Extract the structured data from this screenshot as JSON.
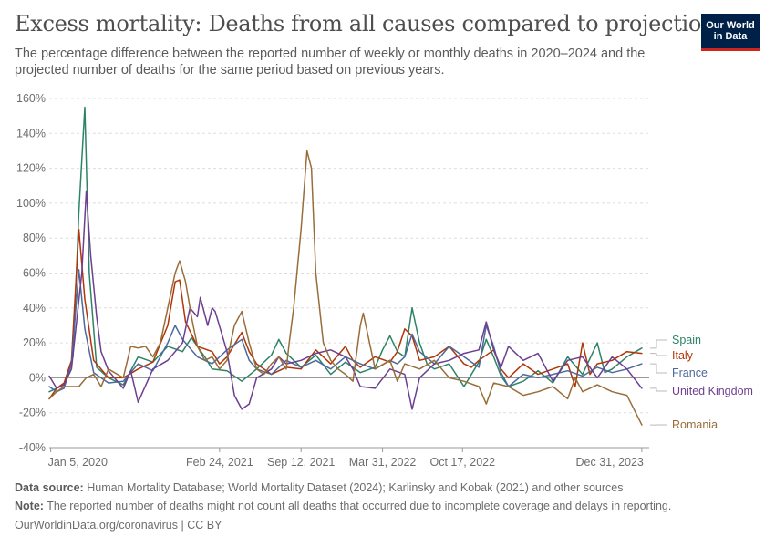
{
  "header": {
    "title": "Excess mortality: Deaths from all causes compared to projection",
    "subtitle": "The percentage difference between the reported number of weekly or monthly deaths in 2020–2024 and the projected number of deaths for the same period based on previous years.",
    "logo_line1": "Our World",
    "logo_line2": "in Data"
  },
  "footer": {
    "source_label": "Data source:",
    "source_text": "Human Mortality Database; World Mortality Dataset (2024); Karlinsky and Kobak (2021) and other sources",
    "note_label": "Note:",
    "note_text": "The reported number of deaths might not count all deaths that occurred due to incomplete coverage and delays in reporting.",
    "credit": "OurWorldinData.org/coronavirus | CC BY"
  },
  "colors": {
    "Spain": "#2c8465",
    "Italy": "#b13507",
    "France": "#4c6a9c",
    "United Kingdom": "#6d3e91",
    "Romania": "#996d39"
  },
  "chart_data": {
    "type": "line",
    "title": "Excess mortality: Deaths from all causes compared to projection",
    "xlabel": "",
    "ylabel": "",
    "ylim": [
      -40,
      160
    ],
    "yticks": [
      -40,
      -20,
      0,
      20,
      40,
      60,
      80,
      100,
      120,
      140,
      160
    ],
    "ytick_labels": [
      "-40%",
      "-20%",
      "0%",
      "20%",
      "40%",
      "60%",
      "80%",
      "100%",
      "120%",
      "140%",
      "160%"
    ],
    "xlim": [
      2020.0,
      2024.05
    ],
    "xticks": [
      {
        "x": 2020.01,
        "label": "Jan 5, 2020"
      },
      {
        "x": 2021.15,
        "label": "Feb 24, 2021"
      },
      {
        "x": 2021.7,
        "label": "Sep 12, 2021"
      },
      {
        "x": 2022.25,
        "label": "Mar 31, 2022"
      },
      {
        "x": 2022.79,
        "label": "Oct 17, 2022"
      },
      {
        "x": 2024.0,
        "label": "Dec 31, 2023"
      }
    ],
    "series": [
      {
        "name": "Spain",
        "points": [
          [
            2020.0,
            -8
          ],
          [
            2020.1,
            -4
          ],
          [
            2020.16,
            12
          ],
          [
            2020.2,
            95
          ],
          [
            2020.24,
            155
          ],
          [
            2020.27,
            60
          ],
          [
            2020.32,
            6
          ],
          [
            2020.4,
            0
          ],
          [
            2020.5,
            -4
          ],
          [
            2020.6,
            12
          ],
          [
            2020.7,
            9
          ],
          [
            2020.8,
            18
          ],
          [
            2020.9,
            15
          ],
          [
            2020.96,
            23
          ],
          [
            2021.0,
            18
          ],
          [
            2021.05,
            12
          ],
          [
            2021.1,
            5
          ],
          [
            2021.2,
            4
          ],
          [
            2021.3,
            -2
          ],
          [
            2021.4,
            5
          ],
          [
            2021.5,
            13
          ],
          [
            2021.55,
            22
          ],
          [
            2021.6,
            14
          ],
          [
            2021.7,
            6
          ],
          [
            2021.8,
            13
          ],
          [
            2021.9,
            2
          ],
          [
            2022.0,
            9
          ],
          [
            2022.1,
            3
          ],
          [
            2022.2,
            6
          ],
          [
            2022.25,
            16
          ],
          [
            2022.3,
            24
          ],
          [
            2022.35,
            15
          ],
          [
            2022.4,
            12
          ],
          [
            2022.45,
            40
          ],
          [
            2022.5,
            20
          ],
          [
            2022.55,
            8
          ],
          [
            2022.6,
            5
          ],
          [
            2022.7,
            8
          ],
          [
            2022.8,
            -5
          ],
          [
            2022.9,
            9
          ],
          [
            2022.95,
            22
          ],
          [
            2023.0,
            12
          ],
          [
            2023.05,
            1
          ],
          [
            2023.1,
            -5
          ],
          [
            2023.2,
            -2
          ],
          [
            2023.3,
            4
          ],
          [
            2023.4,
            -3
          ],
          [
            2023.5,
            12
          ],
          [
            2023.6,
            2
          ],
          [
            2023.7,
            20
          ],
          [
            2023.75,
            3
          ],
          [
            2023.8,
            5
          ],
          [
            2023.9,
            12
          ],
          [
            2024.0,
            17
          ]
        ]
      },
      {
        "name": "Italy",
        "points": [
          [
            2020.0,
            -12
          ],
          [
            2020.05,
            -6
          ],
          [
            2020.1,
            -3
          ],
          [
            2020.15,
            10
          ],
          [
            2020.2,
            85
          ],
          [
            2020.24,
            45
          ],
          [
            2020.3,
            10
          ],
          [
            2020.4,
            0
          ],
          [
            2020.5,
            0
          ],
          [
            2020.6,
            5
          ],
          [
            2020.7,
            9
          ],
          [
            2020.8,
            30
          ],
          [
            2020.85,
            55
          ],
          [
            2020.88,
            56
          ],
          [
            2020.92,
            32
          ],
          [
            2021.0,
            18
          ],
          [
            2021.1,
            15
          ],
          [
            2021.15,
            8
          ],
          [
            2021.2,
            12
          ],
          [
            2021.3,
            26
          ],
          [
            2021.35,
            15
          ],
          [
            2021.4,
            8
          ],
          [
            2021.5,
            2
          ],
          [
            2021.6,
            6
          ],
          [
            2021.7,
            5
          ],
          [
            2021.8,
            16
          ],
          [
            2021.9,
            8
          ],
          [
            2022.0,
            18
          ],
          [
            2022.05,
            10
          ],
          [
            2022.1,
            6
          ],
          [
            2022.2,
            12
          ],
          [
            2022.3,
            9
          ],
          [
            2022.35,
            15
          ],
          [
            2022.4,
            28
          ],
          [
            2022.45,
            24
          ],
          [
            2022.5,
            10
          ],
          [
            2022.6,
            12
          ],
          [
            2022.7,
            18
          ],
          [
            2022.8,
            8
          ],
          [
            2022.85,
            6
          ],
          [
            2022.9,
            10
          ],
          [
            2023.0,
            16
          ],
          [
            2023.05,
            5
          ],
          [
            2023.1,
            0
          ],
          [
            2023.2,
            8
          ],
          [
            2023.3,
            2
          ],
          [
            2023.4,
            5
          ],
          [
            2023.5,
            8
          ],
          [
            2023.55,
            -5
          ],
          [
            2023.6,
            20
          ],
          [
            2023.65,
            2
          ],
          [
            2023.7,
            8
          ],
          [
            2023.8,
            10
          ],
          [
            2023.9,
            15
          ],
          [
            2024.0,
            14
          ]
        ]
      },
      {
        "name": "France",
        "points": [
          [
            2020.0,
            -5
          ],
          [
            2020.05,
            -8
          ],
          [
            2020.1,
            -6
          ],
          [
            2020.15,
            8
          ],
          [
            2020.2,
            62
          ],
          [
            2020.24,
            28
          ],
          [
            2020.3,
            3
          ],
          [
            2020.4,
            -3
          ],
          [
            2020.5,
            -2
          ],
          [
            2020.6,
            8
          ],
          [
            2020.7,
            4
          ],
          [
            2020.8,
            20
          ],
          [
            2020.85,
            30
          ],
          [
            2020.9,
            22
          ],
          [
            2021.0,
            12
          ],
          [
            2021.1,
            8
          ],
          [
            2021.2,
            16
          ],
          [
            2021.3,
            22
          ],
          [
            2021.35,
            10
          ],
          [
            2021.4,
            5
          ],
          [
            2021.5,
            2
          ],
          [
            2021.6,
            10
          ],
          [
            2021.7,
            6
          ],
          [
            2021.8,
            10
          ],
          [
            2021.9,
            5
          ],
          [
            2022.0,
            12
          ],
          [
            2022.1,
            8
          ],
          [
            2022.2,
            5
          ],
          [
            2022.3,
            10
          ],
          [
            2022.35,
            8
          ],
          [
            2022.4,
            12
          ],
          [
            2022.45,
            25
          ],
          [
            2022.5,
            15
          ],
          [
            2022.6,
            8
          ],
          [
            2022.7,
            18
          ],
          [
            2022.8,
            12
          ],
          [
            2022.9,
            6
          ],
          [
            2022.95,
            30
          ],
          [
            2023.0,
            18
          ],
          [
            2023.05,
            3
          ],
          [
            2023.1,
            -5
          ],
          [
            2023.2,
            2
          ],
          [
            2023.3,
            0
          ],
          [
            2023.4,
            2
          ],
          [
            2023.5,
            4
          ],
          [
            2023.6,
            1
          ],
          [
            2023.7,
            6
          ],
          [
            2023.8,
            3
          ],
          [
            2023.9,
            5
          ],
          [
            2024.0,
            8
          ]
        ]
      },
      {
        "name": "United Kingdom",
        "points": [
          [
            2020.0,
            1
          ],
          [
            2020.05,
            -6
          ],
          [
            2020.1,
            -4
          ],
          [
            2020.15,
            5
          ],
          [
            2020.22,
            60
          ],
          [
            2020.25,
            107
          ],
          [
            2020.28,
            70
          ],
          [
            2020.32,
            35
          ],
          [
            2020.35,
            15
          ],
          [
            2020.4,
            4
          ],
          [
            2020.5,
            -6
          ],
          [
            2020.55,
            4
          ],
          [
            2020.6,
            -14
          ],
          [
            2020.7,
            5
          ],
          [
            2020.8,
            10
          ],
          [
            2020.9,
            20
          ],
          [
            2020.95,
            40
          ],
          [
            2021.0,
            35
          ],
          [
            2021.02,
            46
          ],
          [
            2021.07,
            30
          ],
          [
            2021.1,
            40
          ],
          [
            2021.12,
            38
          ],
          [
            2021.2,
            15
          ],
          [
            2021.25,
            -10
          ],
          [
            2021.3,
            -18
          ],
          [
            2021.35,
            -15
          ],
          [
            2021.4,
            0
          ],
          [
            2021.5,
            5
          ],
          [
            2021.55,
            12
          ],
          [
            2021.6,
            8
          ],
          [
            2021.7,
            10
          ],
          [
            2021.8,
            14
          ],
          [
            2021.9,
            16
          ],
          [
            2022.0,
            12
          ],
          [
            2022.05,
            5
          ],
          [
            2022.1,
            -5
          ],
          [
            2022.2,
            -6
          ],
          [
            2022.3,
            5
          ],
          [
            2022.4,
            2
          ],
          [
            2022.45,
            -18
          ],
          [
            2022.5,
            0
          ],
          [
            2022.6,
            8
          ],
          [
            2022.7,
            10
          ],
          [
            2022.8,
            14
          ],
          [
            2022.9,
            16
          ],
          [
            2022.95,
            32
          ],
          [
            2023.0,
            16
          ],
          [
            2023.05,
            6
          ],
          [
            2023.1,
            18
          ],
          [
            2023.2,
            10
          ],
          [
            2023.3,
            14
          ],
          [
            2023.4,
            -2
          ],
          [
            2023.5,
            10
          ],
          [
            2023.6,
            12
          ],
          [
            2023.7,
            0
          ],
          [
            2023.8,
            12
          ],
          [
            2023.9,
            5
          ],
          [
            2024.0,
            -6
          ]
        ]
      },
      {
        "name": "Romania",
        "points": [
          [
            2020.0,
            -12
          ],
          [
            2020.05,
            -8
          ],
          [
            2020.1,
            -5
          ],
          [
            2020.2,
            -5
          ],
          [
            2020.25,
            0
          ],
          [
            2020.3,
            2
          ],
          [
            2020.35,
            -5
          ],
          [
            2020.4,
            5
          ],
          [
            2020.5,
            0
          ],
          [
            2020.55,
            18
          ],
          [
            2020.6,
            17
          ],
          [
            2020.65,
            18
          ],
          [
            2020.7,
            12
          ],
          [
            2020.75,
            20
          ],
          [
            2020.8,
            40
          ],
          [
            2020.85,
            60
          ],
          [
            2020.88,
            67
          ],
          [
            2020.92,
            55
          ],
          [
            2020.96,
            35
          ],
          [
            2021.0,
            18
          ],
          [
            2021.05,
            10
          ],
          [
            2021.1,
            12
          ],
          [
            2021.15,
            5
          ],
          [
            2021.2,
            10
          ],
          [
            2021.25,
            30
          ],
          [
            2021.3,
            38
          ],
          [
            2021.35,
            20
          ],
          [
            2021.4,
            5
          ],
          [
            2021.45,
            2
          ],
          [
            2021.5,
            8
          ],
          [
            2021.55,
            12
          ],
          [
            2021.6,
            5
          ],
          [
            2021.62,
            20
          ],
          [
            2021.65,
            40
          ],
          [
            2021.7,
            85
          ],
          [
            2021.74,
            130
          ],
          [
            2021.77,
            120
          ],
          [
            2021.8,
            60
          ],
          [
            2021.85,
            20
          ],
          [
            2021.9,
            10
          ],
          [
            2021.95,
            5
          ],
          [
            2022.0,
            2
          ],
          [
            2022.05,
            -2
          ],
          [
            2022.1,
            30
          ],
          [
            2022.12,
            37
          ],
          [
            2022.15,
            25
          ],
          [
            2022.2,
            5
          ],
          [
            2022.3,
            10
          ],
          [
            2022.35,
            -2
          ],
          [
            2022.4,
            8
          ],
          [
            2022.5,
            5
          ],
          [
            2022.6,
            10
          ],
          [
            2022.7,
            0
          ],
          [
            2022.8,
            -2
          ],
          [
            2022.9,
            -5
          ],
          [
            2022.95,
            -15
          ],
          [
            2023.0,
            -3
          ],
          [
            2023.1,
            -5
          ],
          [
            2023.2,
            -10
          ],
          [
            2023.3,
            -8
          ],
          [
            2023.4,
            -5
          ],
          [
            2023.5,
            -12
          ],
          [
            2023.55,
            0
          ],
          [
            2023.6,
            -8
          ],
          [
            2023.7,
            -4
          ],
          [
            2023.8,
            -8
          ],
          [
            2023.9,
            -10
          ],
          [
            2024.0,
            -27
          ]
        ]
      }
    ],
    "legend": [
      "Spain",
      "Italy",
      "France",
      "United Kingdom",
      "Romania"
    ],
    "legend_position": "right"
  }
}
